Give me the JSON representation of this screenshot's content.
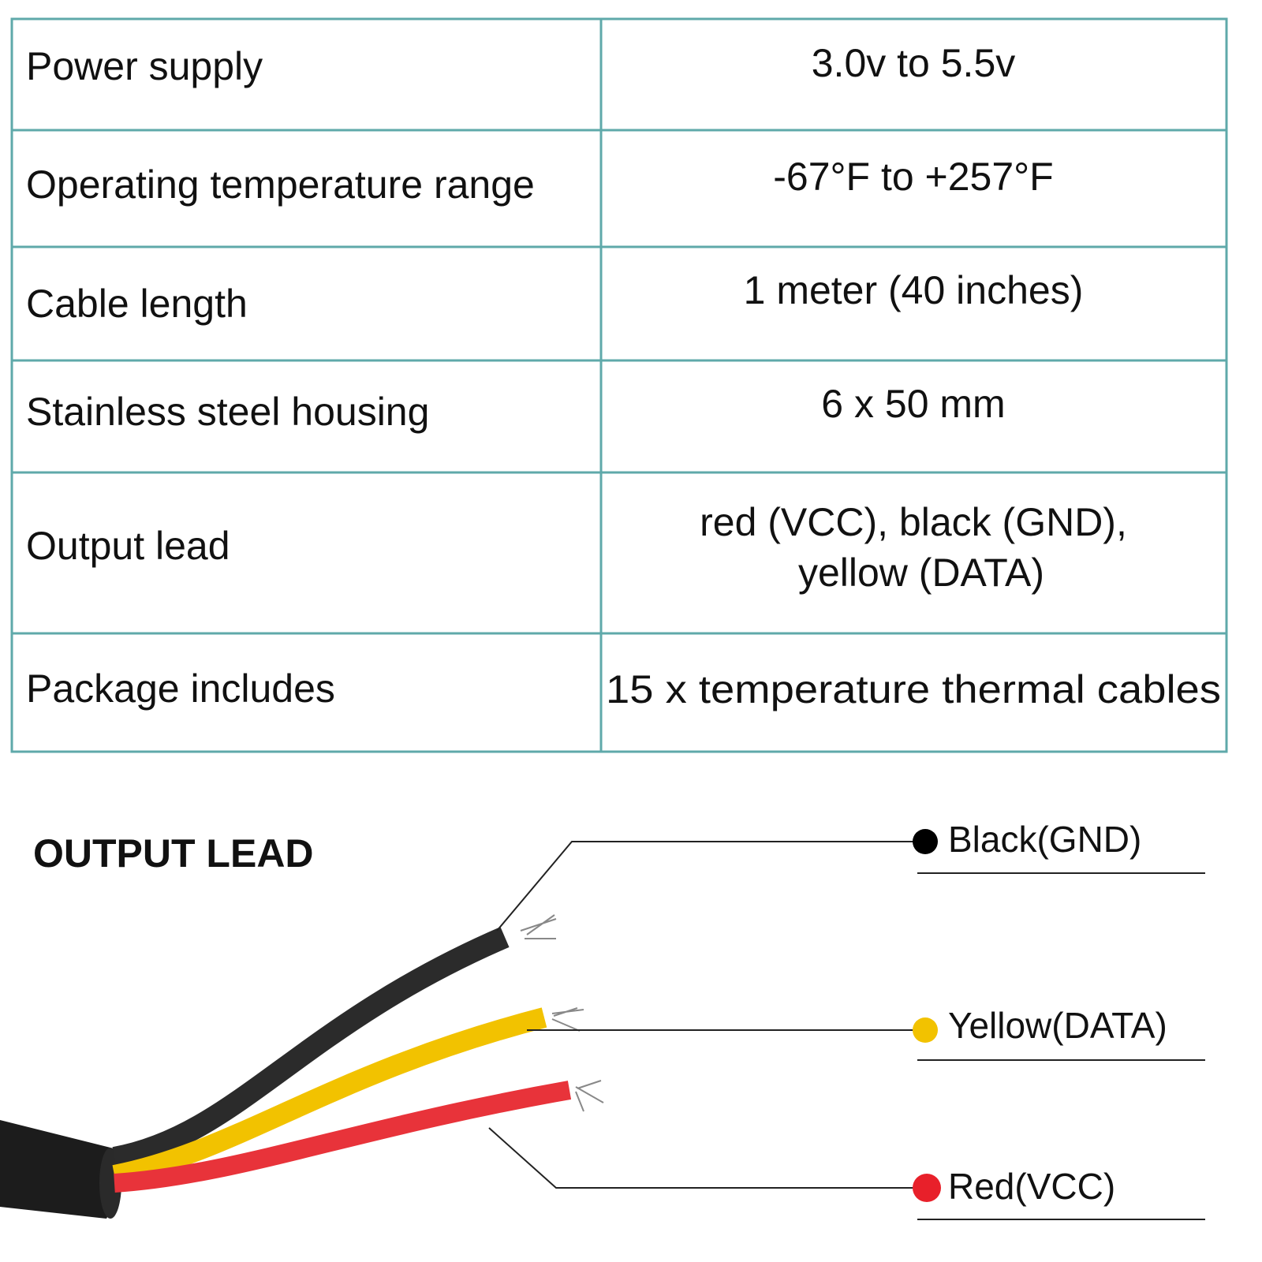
{
  "table": {
    "rows": [
      {
        "label": "Power supply",
        "value": [
          "3.0v to 5.5v"
        ]
      },
      {
        "label": "Operating temperature range",
        "value": [
          "-67°F to +257°F"
        ]
      },
      {
        "label": "Cable length",
        "value": [
          "1 meter (40 inches)"
        ]
      },
      {
        "label": "Stainless steel housing",
        "value": [
          "6 x 50 mm"
        ]
      },
      {
        "label": "Output lead",
        "value": [
          "red (VCC), black (GND),",
          "yellow (DATA)"
        ]
      },
      {
        "label": "Package includes",
        "value": [
          "15 x temperature thermal cables"
        ]
      }
    ]
  },
  "diagram": {
    "title": "OUTPUT LEAD",
    "wires": [
      {
        "label": "Black(GND)"
      },
      {
        "label": "Yellow(DATA)"
      },
      {
        "label": "Red(VCC)"
      }
    ]
  }
}
